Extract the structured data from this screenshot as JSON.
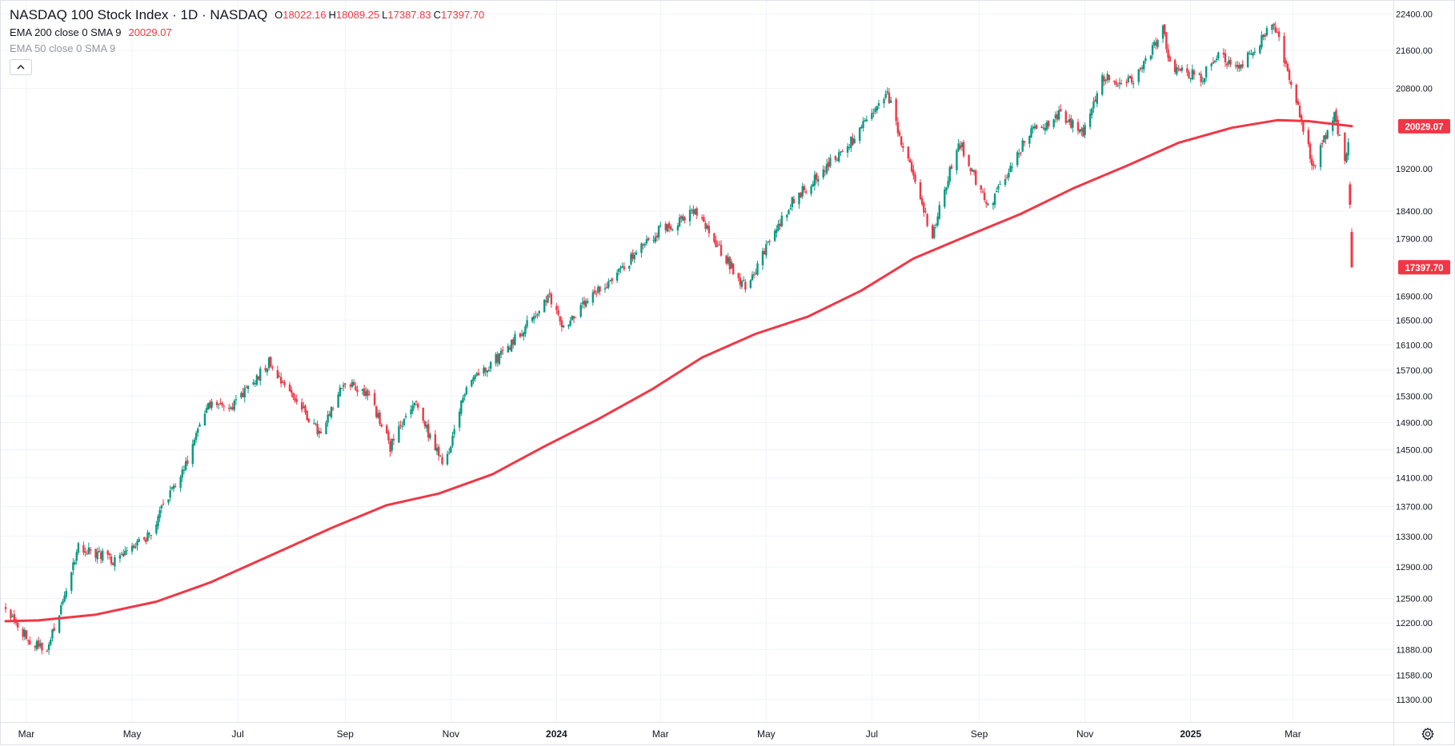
{
  "legend": {
    "symbol": "NASDAQ 100 Stock Index · 1D · NASDAQ",
    "open_key": "O",
    "open": "18022.16",
    "high_key": "H",
    "high": "18089.25",
    "low_key": "L",
    "low": "17387.83",
    "close_key": "C",
    "close": "17397.70",
    "ema200_label": "EMA 200 close 0 SMA 9",
    "ema200_value": "20029.07",
    "ema50_label": "EMA 50 close 0 SMA 9",
    "collapse_icon": "chevron-up-icon"
  },
  "colors": {
    "up": "#089981",
    "down": "#f23645",
    "ema": "#f23645",
    "grid": "#f0f3fa",
    "axis_text": "#131722"
  },
  "chart_data": {
    "type": "candlestick",
    "title": "NASDAQ 100 Stock Index · 1D · NASDAQ",
    "y_scale": "log",
    "ylim": [
      11050,
      22700
    ],
    "y_ticks": [
      22400,
      21600,
      20800,
      19200,
      18400,
      17900,
      16900,
      16500,
      16100,
      15700,
      15300,
      14900,
      14500,
      14100,
      13700,
      13300,
      12900,
      12500,
      12200,
      11880,
      11580,
      11300
    ],
    "y_tick_labels": [
      "22400.00",
      "21600.00",
      "20800.00",
      "19200.00",
      "18400.00",
      "17900.00",
      "16900.00",
      "16500.00",
      "16100.00",
      "15700.00",
      "15300.00",
      "14900.00",
      "14500.00",
      "14100.00",
      "13700.00",
      "13300.00",
      "12900.00",
      "12500.00",
      "12200.00",
      "11880.00",
      "11580.00",
      "11300.00"
    ],
    "x_start": "2023-02-17",
    "x_end": "2025-04-04",
    "x_ticks": [
      {
        "label": "Mar",
        "date": "2023-03-01",
        "bold": false
      },
      {
        "label": "May",
        "date": "2023-05-01",
        "bold": false
      },
      {
        "label": "Jul",
        "date": "2023-07-01",
        "bold": false
      },
      {
        "label": "Sep",
        "date": "2023-09-01",
        "bold": false
      },
      {
        "label": "Nov",
        "date": "2023-11-01",
        "bold": false
      },
      {
        "label": "2024",
        "date": "2024-01-01",
        "bold": true
      },
      {
        "label": "Mar",
        "date": "2024-03-01",
        "bold": false
      },
      {
        "label": "May",
        "date": "2024-05-01",
        "bold": false
      },
      {
        "label": "Jul",
        "date": "2024-07-01",
        "bold": false
      },
      {
        "label": "Sep",
        "date": "2024-09-01",
        "bold": false
      },
      {
        "label": "Nov",
        "date": "2024-11-01",
        "bold": false
      },
      {
        "label": "2025",
        "date": "2025-01-01",
        "bold": true
      },
      {
        "label": "Mar",
        "date": "2025-03-01",
        "bold": false
      }
    ],
    "close_series": [
      {
        "date": "2023-02-17",
        "close": 12400
      },
      {
        "date": "2023-03-01",
        "close": 12030
      },
      {
        "date": "2023-03-13",
        "close": 11850
      },
      {
        "date": "2023-03-31",
        "close": 13180
      },
      {
        "date": "2023-04-20",
        "close": 12990
      },
      {
        "date": "2023-05-10",
        "close": 13280
      },
      {
        "date": "2023-05-31",
        "close": 14250
      },
      {
        "date": "2023-06-15",
        "close": 15180
      },
      {
        "date": "2023-06-30",
        "close": 15180
      },
      {
        "date": "2023-07-19",
        "close": 15840
      },
      {
        "date": "2023-08-02",
        "close": 15300
      },
      {
        "date": "2023-08-18",
        "close": 14700
      },
      {
        "date": "2023-08-31",
        "close": 15500
      },
      {
        "date": "2023-09-14",
        "close": 15350
      },
      {
        "date": "2023-09-27",
        "close": 14550
      },
      {
        "date": "2023-10-11",
        "close": 15200
      },
      {
        "date": "2023-10-26",
        "close": 14350
      },
      {
        "date": "2023-10-31",
        "close": 14420
      },
      {
        "date": "2023-11-10",
        "close": 15500
      },
      {
        "date": "2023-11-30",
        "close": 15950
      },
      {
        "date": "2023-12-28",
        "close": 16880
      },
      {
        "date": "2024-01-05",
        "close": 16400
      },
      {
        "date": "2024-01-31",
        "close": 17150
      },
      {
        "date": "2024-02-29",
        "close": 18050
      },
      {
        "date": "2024-03-21",
        "close": 18380
      },
      {
        "date": "2024-04-19",
        "close": 17050
      },
      {
        "date": "2024-05-15",
        "close": 18550
      },
      {
        "date": "2024-06-20",
        "close": 19750
      },
      {
        "date": "2024-07-10",
        "close": 20670
      },
      {
        "date": "2024-07-25",
        "close": 19000
      },
      {
        "date": "2024-08-05",
        "close": 17950
      },
      {
        "date": "2024-08-20",
        "close": 19750
      },
      {
        "date": "2024-09-06",
        "close": 18450
      },
      {
        "date": "2024-09-30",
        "close": 19900
      },
      {
        "date": "2024-10-17",
        "close": 20250
      },
      {
        "date": "2024-10-31",
        "close": 19900
      },
      {
        "date": "2024-11-11",
        "close": 21050
      },
      {
        "date": "2024-11-29",
        "close": 20900
      },
      {
        "date": "2024-12-16",
        "close": 22050
      },
      {
        "date": "2024-12-20",
        "close": 21300
      },
      {
        "date": "2025-01-07",
        "close": 21000
      },
      {
        "date": "2025-01-17",
        "close": 21600
      },
      {
        "date": "2025-01-27",
        "close": 21200
      },
      {
        "date": "2025-02-18",
        "close": 22150
      },
      {
        "date": "2025-03-03",
        "close": 20600
      },
      {
        "date": "2025-03-13",
        "close": 19200
      },
      {
        "date": "2025-03-25",
        "close": 20300
      },
      {
        "date": "2025-03-31",
        "close": 19300
      },
      {
        "date": "2025-04-02",
        "close": 19640
      },
      {
        "date": "2025-04-03",
        "close": 18520
      },
      {
        "date": "2025-04-04",
        "close": 17397.7
      }
    ],
    "final_candles": [
      {
        "date": "2025-04-03",
        "open": 18900,
        "high": 18950,
        "low": 18450,
        "close": 18520
      },
      {
        "date": "2025-04-04",
        "open": 18022.16,
        "high": 18089.25,
        "low": 17387.83,
        "close": 17397.7
      }
    ],
    "ema200": [
      {
        "date": "2023-02-17",
        "value": 12220
      },
      {
        "date": "2023-03-08",
        "value": 12230
      },
      {
        "date": "2023-04-10",
        "value": 12300
      },
      {
        "date": "2023-05-15",
        "value": 12460
      },
      {
        "date": "2023-06-15",
        "value": 12700
      },
      {
        "date": "2023-07-20",
        "value": 13050
      },
      {
        "date": "2023-08-25",
        "value": 13420
      },
      {
        "date": "2023-09-25",
        "value": 13720
      },
      {
        "date": "2023-10-25",
        "value": 13880
      },
      {
        "date": "2023-11-25",
        "value": 14150
      },
      {
        "date": "2023-12-25",
        "value": 14550
      },
      {
        "date": "2024-01-25",
        "value": 14950
      },
      {
        "date": "2024-02-25",
        "value": 15400
      },
      {
        "date": "2024-03-25",
        "value": 15900
      },
      {
        "date": "2024-04-25",
        "value": 16280
      },
      {
        "date": "2024-05-25",
        "value": 16560
      },
      {
        "date": "2024-06-25",
        "value": 17000
      },
      {
        "date": "2024-07-25",
        "value": 17550
      },
      {
        "date": "2024-08-25",
        "value": 17950
      },
      {
        "date": "2024-09-25",
        "value": 18350
      },
      {
        "date": "2024-10-25",
        "value": 18820
      },
      {
        "date": "2024-11-25",
        "value": 19250
      },
      {
        "date": "2024-12-25",
        "value": 19700
      },
      {
        "date": "2025-01-25",
        "value": 20000
      },
      {
        "date": "2025-02-20",
        "value": 20150
      },
      {
        "date": "2025-03-10",
        "value": 20130
      },
      {
        "date": "2025-04-04",
        "value": 20029.07
      }
    ],
    "price_labels": [
      {
        "text": "20029.07",
        "value": 20029.07,
        "color": "#f23645",
        "target": "ema"
      },
      {
        "text": "17397.70",
        "value": 17397.7,
        "color": "#f23645",
        "target": "last"
      }
    ]
  }
}
